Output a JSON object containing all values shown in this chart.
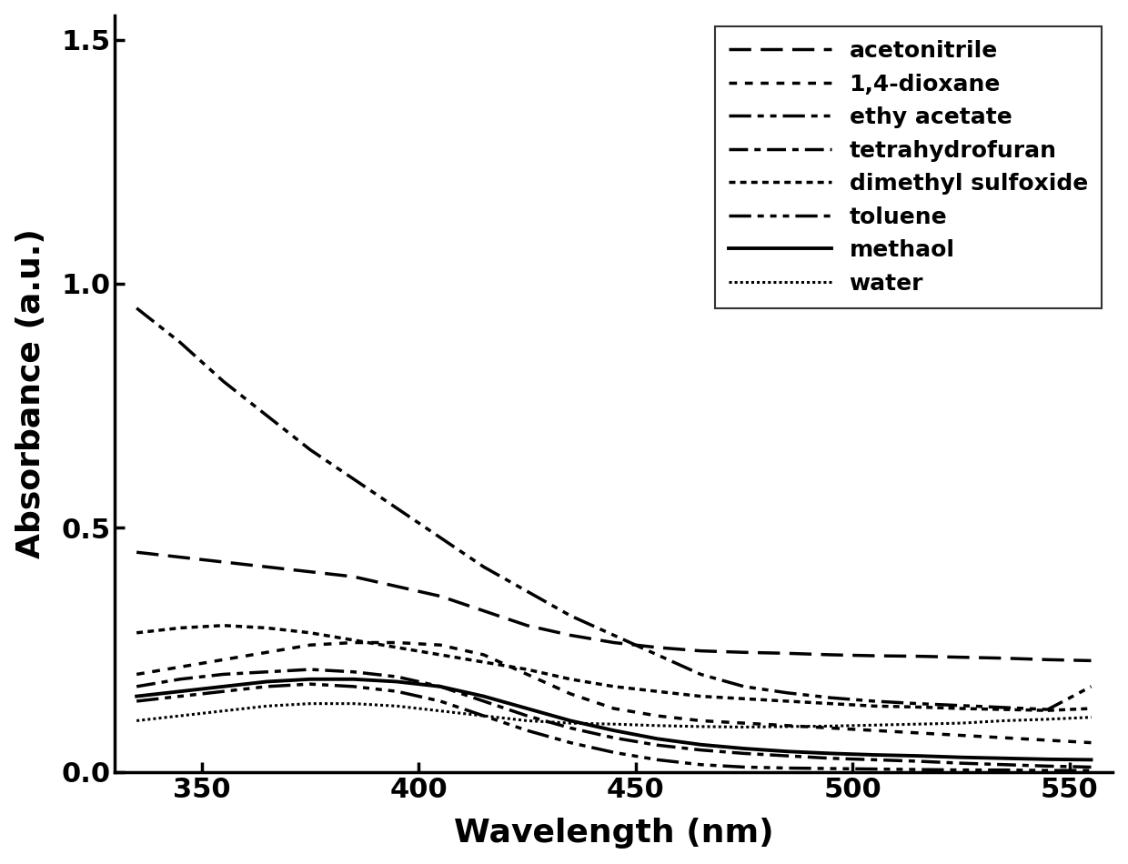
{
  "title": "",
  "xlabel": "Wavelength (nm)",
  "ylabel": "Absorbance (a.u.)",
  "xlim": [
    330,
    560
  ],
  "ylim": [
    0.0,
    1.55
  ],
  "xticks": [
    350,
    400,
    450,
    500,
    550
  ],
  "yticks": [
    0.0,
    0.5,
    1.0,
    1.5
  ],
  "background_color": "#ffffff",
  "series": [
    {
      "label": "acetonitrile",
      "linewidth": 2.5,
      "color": "#000000",
      "x": [
        335,
        345,
        355,
        365,
        375,
        385,
        395,
        405,
        415,
        425,
        435,
        445,
        455,
        465,
        475,
        485,
        495,
        505,
        515,
        525,
        535,
        545,
        555
      ],
      "y": [
        0.45,
        0.44,
        0.43,
        0.42,
        0.41,
        0.4,
        0.38,
        0.36,
        0.33,
        0.3,
        0.28,
        0.265,
        0.255,
        0.248,
        0.245,
        0.243,
        0.24,
        0.238,
        0.237,
        0.235,
        0.233,
        0.23,
        0.228
      ]
    },
    {
      "label": "1,4-dioxane",
      "linewidth": 2.5,
      "color": "#000000",
      "x": [
        335,
        345,
        355,
        365,
        375,
        385,
        395,
        405,
        415,
        425,
        435,
        445,
        455,
        465,
        475,
        485,
        495,
        505,
        515,
        525,
        535,
        545,
        555
      ],
      "y": [
        0.2,
        0.215,
        0.23,
        0.245,
        0.26,
        0.265,
        0.265,
        0.26,
        0.24,
        0.2,
        0.16,
        0.13,
        0.115,
        0.105,
        0.1,
        0.095,
        0.09,
        0.085,
        0.08,
        0.075,
        0.07,
        0.065,
        0.06
      ]
    },
    {
      "label": "ethy acetate",
      "linewidth": 2.5,
      "color": "#000000",
      "x": [
        335,
        345,
        355,
        365,
        375,
        385,
        395,
        405,
        415,
        425,
        435,
        445,
        455,
        465,
        475,
        485,
        495,
        505,
        515,
        525,
        535,
        545,
        555
      ],
      "y": [
        0.95,
        0.88,
        0.8,
        0.73,
        0.66,
        0.6,
        0.54,
        0.48,
        0.42,
        0.37,
        0.32,
        0.28,
        0.24,
        0.2,
        0.175,
        0.162,
        0.152,
        0.145,
        0.14,
        0.136,
        0.132,
        0.128,
        0.175
      ]
    },
    {
      "label": "tetrahydrofuran",
      "linewidth": 2.5,
      "color": "#000000",
      "x": [
        335,
        345,
        355,
        365,
        375,
        385,
        395,
        405,
        415,
        425,
        435,
        445,
        455,
        465,
        475,
        485,
        495,
        505,
        515,
        525,
        535,
        545,
        555
      ],
      "y": [
        0.175,
        0.19,
        0.2,
        0.205,
        0.21,
        0.205,
        0.195,
        0.175,
        0.145,
        0.115,
        0.09,
        0.07,
        0.055,
        0.045,
        0.038,
        0.033,
        0.028,
        0.025,
        0.022,
        0.018,
        0.015,
        0.012,
        0.01
      ]
    },
    {
      "label": "dimethyl sulfoxide",
      "linewidth": 2.5,
      "color": "#000000",
      "x": [
        335,
        345,
        355,
        365,
        375,
        385,
        395,
        405,
        415,
        425,
        435,
        445,
        455,
        465,
        475,
        485,
        495,
        505,
        515,
        525,
        535,
        545,
        555
      ],
      "y": [
        0.285,
        0.295,
        0.3,
        0.295,
        0.285,
        0.27,
        0.255,
        0.24,
        0.225,
        0.21,
        0.19,
        0.175,
        0.165,
        0.155,
        0.15,
        0.145,
        0.14,
        0.135,
        0.133,
        0.13,
        0.128,
        0.126,
        0.13
      ]
    },
    {
      "label": "toluene",
      "linewidth": 2.5,
      "color": "#000000",
      "x": [
        335,
        345,
        355,
        365,
        375,
        385,
        395,
        405,
        415,
        425,
        435,
        445,
        455,
        465,
        475,
        485,
        495,
        505,
        515,
        525,
        535,
        545,
        555
      ],
      "y": [
        0.145,
        0.155,
        0.165,
        0.175,
        0.18,
        0.175,
        0.165,
        0.145,
        0.115,
        0.085,
        0.06,
        0.04,
        0.025,
        0.015,
        0.01,
        0.008,
        0.007,
        0.006,
        0.005,
        0.004,
        0.004,
        0.003,
        0.003
      ]
    },
    {
      "label": "methaol",
      "linewidth": 2.8,
      "color": "#000000",
      "x": [
        335,
        345,
        355,
        365,
        375,
        385,
        395,
        405,
        415,
        425,
        435,
        445,
        455,
        465,
        475,
        485,
        495,
        505,
        515,
        525,
        535,
        545,
        555
      ],
      "y": [
        0.155,
        0.165,
        0.175,
        0.185,
        0.19,
        0.19,
        0.185,
        0.175,
        0.155,
        0.13,
        0.105,
        0.085,
        0.068,
        0.056,
        0.048,
        0.042,
        0.038,
        0.035,
        0.033,
        0.03,
        0.028,
        0.026,
        0.025
      ]
    },
    {
      "label": "water",
      "linewidth": 2.2,
      "color": "#000000",
      "x": [
        335,
        345,
        355,
        365,
        375,
        385,
        395,
        405,
        415,
        425,
        435,
        445,
        455,
        465,
        475,
        485,
        495,
        505,
        515,
        525,
        535,
        545,
        555
      ],
      "y": [
        0.105,
        0.115,
        0.125,
        0.135,
        0.14,
        0.14,
        0.135,
        0.125,
        0.115,
        0.105,
        0.1,
        0.098,
        0.095,
        0.093,
        0.092,
        0.093,
        0.094,
        0.096,
        0.098,
        0.1,
        0.105,
        0.108,
        0.112
      ]
    }
  ],
  "legend_fontsize": 18,
  "axis_label_fontsize": 26,
  "tick_fontsize": 22,
  "legend_loc": "upper right"
}
